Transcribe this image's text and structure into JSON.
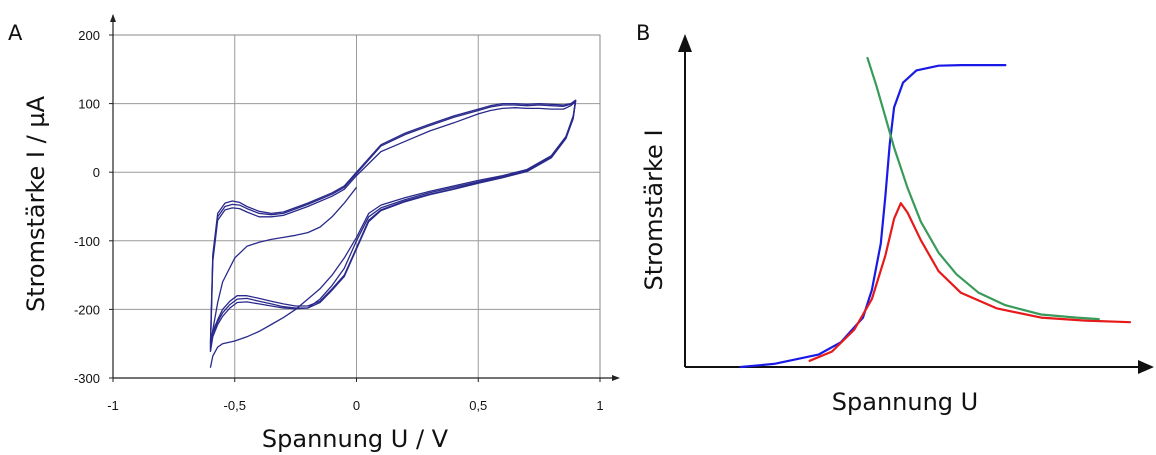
{
  "chart_data": [
    {
      "panel_label": "A",
      "type": "line",
      "xlabel": "Spannung U / V",
      "ylabel": "Stromstärke I / µA",
      "xlim": [
        -1,
        1
      ],
      "ylim": [
        -300,
        200
      ],
      "xticks": [
        -1,
        -0.5,
        0,
        0.5,
        1
      ],
      "xtick_labels": [
        "-1",
        "-0,5",
        "0",
        "0,5",
        "1"
      ],
      "yticks": [
        -300,
        -200,
        -100,
        0,
        100,
        200
      ],
      "ytick_labels": [
        "-300",
        "-200",
        "-100",
        "0",
        "100",
        "200"
      ],
      "grid": true,
      "series_color": "#2a2a8c",
      "series": [
        {
          "points": [
            [
              -0.6,
              -250
            ],
            [
              -0.59,
              -232
            ],
            [
              -0.57,
              -215
            ],
            [
              -0.55,
              -200
            ],
            [
              -0.52,
              -188
            ],
            [
              -0.49,
              -180
            ],
            [
              -0.45,
              -180
            ],
            [
              -0.4,
              -184
            ],
            [
              -0.35,
              -188
            ],
            [
              -0.3,
              -192
            ],
            [
              -0.25,
              -195
            ],
            [
              -0.2,
              -195
            ],
            [
              -0.15,
              -188
            ],
            [
              -0.1,
              -170
            ],
            [
              -0.05,
              -150
            ],
            [
              0,
              -110
            ],
            [
              0.05,
              -70
            ],
            [
              0.1,
              -55
            ],
            [
              0.2,
              -42
            ],
            [
              0.3,
              -32
            ],
            [
              0.4,
              -24
            ],
            [
              0.5,
              -15
            ],
            [
              0.6,
              -7
            ],
            [
              0.7,
              2
            ],
            [
              0.8,
              22
            ],
            [
              0.86,
              50
            ],
            [
              0.89,
              80
            ],
            [
              0.9,
              105
            ],
            [
              0.88,
              100
            ],
            [
              0.85,
              98
            ],
            [
              0.8,
              99
            ],
            [
              0.75,
              100
            ],
            [
              0.7,
              99
            ],
            [
              0.65,
              100
            ],
            [
              0.6,
              100
            ],
            [
              0.55,
              97
            ],
            [
              0.5,
              92
            ],
            [
              0.4,
              82
            ],
            [
              0.3,
              70
            ],
            [
              0.2,
              57
            ],
            [
              0.1,
              40
            ],
            [
              0,
              0
            ],
            [
              -0.05,
              -20
            ],
            [
              -0.1,
              -30
            ],
            [
              -0.2,
              -45
            ],
            [
              -0.3,
              -58
            ],
            [
              -0.35,
              -60
            ],
            [
              -0.4,
              -57
            ],
            [
              -0.45,
              -50
            ],
            [
              -0.48,
              -44
            ],
            [
              -0.51,
              -42
            ],
            [
              -0.54,
              -45
            ],
            [
              -0.57,
              -60
            ],
            [
              -0.59,
              -120
            ],
            [
              -0.6,
              -250
            ]
          ]
        },
        {
          "points": [
            [
              -0.6,
              -255
            ],
            [
              -0.59,
              -235
            ],
            [
              -0.57,
              -218
            ],
            [
              -0.55,
              -205
            ],
            [
              -0.52,
              -193
            ],
            [
              -0.49,
              -185
            ],
            [
              -0.45,
              -184
            ],
            [
              -0.4,
              -188
            ],
            [
              -0.35,
              -192
            ],
            [
              -0.3,
              -196
            ],
            [
              -0.25,
              -198
            ],
            [
              -0.2,
              -198
            ],
            [
              -0.15,
              -190
            ],
            [
              -0.1,
              -172
            ],
            [
              -0.05,
              -152
            ],
            [
              0,
              -112
            ],
            [
              0.05,
              -72
            ],
            [
              0.1,
              -56
            ],
            [
              0.2,
              -43
            ],
            [
              0.3,
              -33
            ],
            [
              0.4,
              -25
            ],
            [
              0.5,
              -16
            ],
            [
              0.6,
              -8
            ],
            [
              0.7,
              1
            ],
            [
              0.8,
              21
            ],
            [
              0.86,
              49
            ],
            [
              0.89,
              78
            ],
            [
              0.9,
              104
            ],
            [
              0.88,
              99
            ],
            [
              0.85,
              96
            ],
            [
              0.8,
              97
            ],
            [
              0.75,
              98
            ],
            [
              0.7,
              97
            ],
            [
              0.65,
              98
            ],
            [
              0.6,
              98
            ],
            [
              0.55,
              95
            ],
            [
              0.5,
              90
            ],
            [
              0.4,
              80
            ],
            [
              0.3,
              68
            ],
            [
              0.2,
              55
            ],
            [
              0.1,
              38
            ],
            [
              0,
              -2
            ],
            [
              -0.05,
              -22
            ],
            [
              -0.1,
              -32
            ],
            [
              -0.2,
              -47
            ],
            [
              -0.3,
              -60
            ],
            [
              -0.35,
              -62
            ],
            [
              -0.4,
              -60
            ],
            [
              -0.45,
              -53
            ],
            [
              -0.48,
              -48
            ],
            [
              -0.51,
              -47
            ],
            [
              -0.54,
              -50
            ],
            [
              -0.57,
              -65
            ],
            [
              -0.59,
              -125
            ],
            [
              -0.6,
              -255
            ]
          ]
        },
        {
          "points": [
            [
              -0.6,
              -262
            ],
            [
              -0.59,
              -240
            ],
            [
              -0.57,
              -222
            ],
            [
              -0.55,
              -210
            ],
            [
              -0.52,
              -198
            ],
            [
              -0.49,
              -190
            ],
            [
              -0.45,
              -189
            ],
            [
              -0.4,
              -192
            ],
            [
              -0.35,
              -195
            ],
            [
              -0.3,
              -198
            ],
            [
              -0.25,
              -199
            ],
            [
              -0.2,
              -198
            ],
            [
              -0.15,
              -185
            ],
            [
              -0.1,
              -165
            ],
            [
              -0.05,
              -140
            ],
            [
              0,
              -100
            ],
            [
              0.05,
              -65
            ],
            [
              0.1,
              -52
            ],
            [
              0.2,
              -40
            ],
            [
              0.3,
              -30
            ],
            [
              0.4,
              -22
            ],
            [
              0.5,
              -14
            ],
            [
              0.6,
              -6
            ],
            [
              0.7,
              3
            ],
            [
              0.8,
              23
            ],
            [
              0.86,
              51
            ],
            [
              0.89,
              80
            ],
            [
              0.9,
              103
            ],
            [
              0.88,
              97
            ],
            [
              0.85,
              92
            ],
            [
              0.8,
              92
            ],
            [
              0.75,
              93
            ],
            [
              0.7,
              93
            ],
            [
              0.65,
              94
            ],
            [
              0.6,
              93
            ],
            [
              0.55,
              90
            ],
            [
              0.5,
              85
            ],
            [
              0.4,
              72
            ],
            [
              0.3,
              60
            ],
            [
              0.2,
              45
            ],
            [
              0.1,
              30
            ],
            [
              0,
              -5
            ],
            [
              -0.05,
              -25
            ],
            [
              -0.1,
              -35
            ],
            [
              -0.2,
              -50
            ],
            [
              -0.3,
              -63
            ],
            [
              -0.35,
              -65
            ],
            [
              -0.4,
              -65
            ],
            [
              -0.45,
              -58
            ],
            [
              -0.48,
              -53
            ],
            [
              -0.51,
              -52
            ],
            [
              -0.54,
              -55
            ],
            [
              -0.57,
              -70
            ],
            [
              -0.59,
              -130
            ],
            [
              -0.6,
              -262
            ]
          ]
        },
        {
          "points": [
            [
              -0.6,
              -285
            ],
            [
              -0.59,
              -268
            ],
            [
              -0.57,
              -255
            ],
            [
              -0.55,
              -250
            ],
            [
              -0.5,
              -246
            ],
            [
              -0.45,
              -240
            ],
            [
              -0.4,
              -232
            ],
            [
              -0.35,
              -222
            ],
            [
              -0.3,
              -212
            ],
            [
              -0.25,
              -200
            ],
            [
              -0.2,
              -185
            ],
            [
              -0.15,
              -170
            ],
            [
              -0.1,
              -150
            ],
            [
              -0.05,
              -125
            ],
            [
              0,
              -95
            ],
            [
              0.05,
              -60
            ],
            [
              0.1,
              -48
            ],
            [
              0.2,
              -37
            ],
            [
              0.3,
              -28
            ],
            [
              0.4,
              -20
            ],
            [
              0.5,
              -12
            ],
            [
              0.6,
              -5
            ],
            [
              0.7,
              4
            ],
            [
              0.8,
              24
            ],
            [
              0.86,
              52
            ],
            [
              0.89,
              82
            ],
            [
              0.9,
              105
            ]
          ]
        },
        {
          "points": [
            [
              -0.6,
              -258
            ],
            [
              -0.59,
              -230
            ],
            [
              -0.57,
              -190
            ],
            [
              -0.55,
              -160
            ],
            [
              -0.5,
              -125
            ],
            [
              -0.45,
              -108
            ],
            [
              -0.4,
              -102
            ],
            [
              -0.35,
              -98
            ],
            [
              -0.3,
              -95
            ],
            [
              -0.25,
              -92
            ],
            [
              -0.2,
              -88
            ],
            [
              -0.15,
              -80
            ],
            [
              -0.1,
              -65
            ],
            [
              -0.05,
              -45
            ],
            [
              0,
              -22
            ]
          ]
        }
      ]
    },
    {
      "panel_label": "B",
      "type": "line",
      "xlabel": "Spannung U",
      "ylabel": "Stromstärke I",
      "grid": false,
      "x_range": [
        0,
        1
      ],
      "y_range": [
        0,
        1
      ],
      "series": [
        {
          "color": "#1a1ae6",
          "points": [
            [
              0.125,
              0.0
            ],
            [
              0.2,
              0.01
            ],
            [
              0.3,
              0.04
            ],
            [
              0.35,
              0.08
            ],
            [
              0.4,
              0.16
            ],
            [
              0.42,
              0.25
            ],
            [
              0.44,
              0.4
            ],
            [
              0.45,
              0.55
            ],
            [
              0.46,
              0.72
            ],
            [
              0.47,
              0.84
            ],
            [
              0.49,
              0.92
            ],
            [
              0.52,
              0.96
            ],
            [
              0.57,
              0.975
            ],
            [
              0.62,
              0.977
            ],
            [
              0.72,
              0.977
            ]
          ]
        },
        {
          "color": "#e61a1a",
          "points": [
            [
              0.28,
              0.02
            ],
            [
              0.33,
              0.05
            ],
            [
              0.38,
              0.12
            ],
            [
              0.42,
              0.22
            ],
            [
              0.45,
              0.36
            ],
            [
              0.47,
              0.48
            ],
            [
              0.485,
              0.53
            ],
            [
              0.5,
              0.5
            ],
            [
              0.53,
              0.41
            ],
            [
              0.57,
              0.31
            ],
            [
              0.62,
              0.24
            ],
            [
              0.7,
              0.19
            ],
            [
              0.8,
              0.16
            ],
            [
              0.9,
              0.15
            ],
            [
              1.0,
              0.145
            ]
          ]
        },
        {
          "color": "#3a9a5a",
          "points": [
            [
              0.41,
              1.0
            ],
            [
              0.43,
              0.91
            ],
            [
              0.45,
              0.81
            ],
            [
              0.47,
              0.71
            ],
            [
              0.5,
              0.58
            ],
            [
              0.53,
              0.47
            ],
            [
              0.57,
              0.37
            ],
            [
              0.61,
              0.3
            ],
            [
              0.66,
              0.24
            ],
            [
              0.72,
              0.2
            ],
            [
              0.8,
              0.17
            ],
            [
              0.88,
              0.16
            ],
            [
              0.93,
              0.155
            ]
          ]
        }
      ]
    }
  ]
}
